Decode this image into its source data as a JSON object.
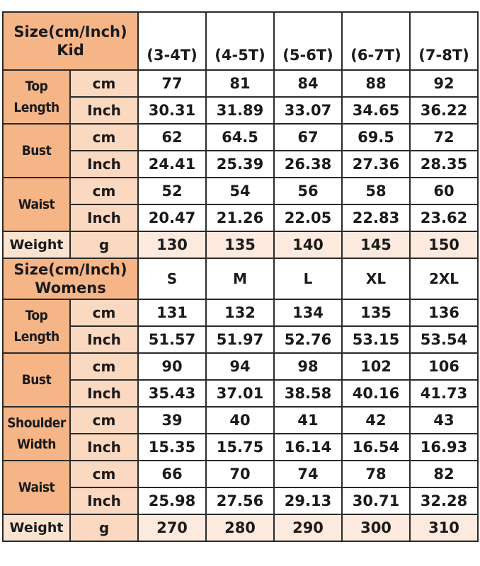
{
  "kid": {
    "header": "Size(cm/Inch)",
    "subheader": "Kid",
    "sizes": [
      "(3-4T)",
      "(4-5T)",
      "(5-6T)",
      "(6-7T)",
      "(7-8T)"
    ],
    "measures": [
      {
        "label": "Top Length",
        "cm": [
          "77",
          "81",
          "84",
          "88",
          "92"
        ],
        "inch": [
          "30.31",
          "31.89",
          "33.07",
          "34.65",
          "36.22"
        ]
      },
      {
        "label": "Bust",
        "cm": [
          "62",
          "64.5",
          "67",
          "69.5",
          "72"
        ],
        "inch": [
          "24.41",
          "25.39",
          "26.38",
          "27.36",
          "28.35"
        ]
      },
      {
        "label": "Waist",
        "cm": [
          "52",
          "54",
          "56",
          "58",
          "60"
        ],
        "inch": [
          "20.47",
          "21.26",
          "22.05",
          "22.83",
          "23.62"
        ]
      }
    ],
    "weight": {
      "label": "Weight",
      "unit": "g",
      "values": [
        "130",
        "135",
        "140",
        "145",
        "150"
      ]
    }
  },
  "womens": {
    "header": "Size(cm/Inch)",
    "subheader": "Womens",
    "sizes": [
      "S",
      "M",
      "L",
      "XL",
      "2XL"
    ],
    "measures": [
      {
        "label": "Top Length",
        "cm": [
          "131",
          "132",
          "134",
          "135",
          "136"
        ],
        "inch": [
          "51.57",
          "51.97",
          "52.76",
          "53.15",
          "53.54"
        ]
      },
      {
        "label": "Bust",
        "cm": [
          "90",
          "94",
          "98",
          "102",
          "106"
        ],
        "inch": [
          "35.43",
          "37.01",
          "38.58",
          "40.16",
          "41.73"
        ]
      },
      {
        "label": "Shoulder Width",
        "cm": [
          "39",
          "40",
          "41",
          "42",
          "43"
        ],
        "inch": [
          "15.35",
          "15.75",
          "16.14",
          "16.54",
          "16.93"
        ]
      },
      {
        "label": "Waist",
        "cm": [
          "66",
          "70",
          "74",
          "78",
          "82"
        ],
        "inch": [
          "25.98",
          "27.56",
          "29.13",
          "30.71",
          "32.28"
        ]
      }
    ],
    "weight": {
      "label": "Weight",
      "unit": "g",
      "values": [
        "270",
        "280",
        "290",
        "300",
        "310"
      ]
    }
  },
  "units": {
    "cm": "cm",
    "inch": "Inch"
  },
  "colors": {
    "header": "#F5B587",
    "unit": "#FBD8C0",
    "weight": "#FCEADE"
  }
}
